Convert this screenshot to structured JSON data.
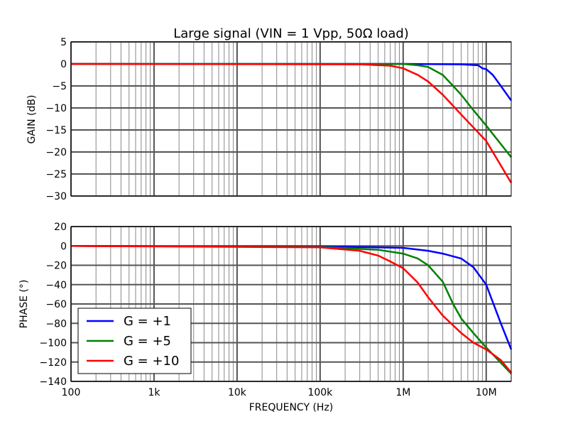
{
  "chart_data": [
    {
      "type": "line",
      "title": "Large signal (VIN = 1 Vpp, 50Ω load)",
      "xlabel": "",
      "ylabel": "GAIN (dB)",
      "xscale": "log",
      "xlim": [
        100,
        20000000
      ],
      "ylim": [
        -30,
        5
      ],
      "yticks": [
        5,
        0,
        -5,
        -10,
        -15,
        -20,
        -25,
        -30
      ],
      "grid": true,
      "series": [
        {
          "name": "G = +1",
          "color": "#0000ff",
          "x": [
            100,
            1000000,
            5000000,
            8000000,
            9000000,
            10000000,
            12000000,
            15000000,
            20000000
          ],
          "y": [
            0,
            0,
            -0.1,
            -0.3,
            -1,
            -1.2,
            -2.5,
            -5,
            -8.3
          ]
        },
        {
          "name": "G = +5",
          "color": "#008000",
          "x": [
            100,
            1000000,
            1500000,
            2000000,
            3000000,
            4000000,
            5000000,
            7000000,
            10000000,
            20000000
          ],
          "y": [
            0,
            0,
            -0.3,
            -0.7,
            -2.5,
            -5,
            -7,
            -10.5,
            -14,
            -21.2
          ]
        },
        {
          "name": "G = +10",
          "color": "#ff0000",
          "x": [
            100,
            300000,
            700000,
            1000000,
            1500000,
            2000000,
            3000000,
            5000000,
            10000000,
            20000000
          ],
          "y": [
            0,
            -0.1,
            -0.4,
            -1,
            -2.5,
            -4,
            -7,
            -11.5,
            -17.5,
            -27
          ]
        }
      ]
    },
    {
      "type": "line",
      "xlabel": "FREQUENCY (Hz)",
      "ylabel": "PHASE (°)",
      "xscale": "log",
      "xlim": [
        100,
        20000000
      ],
      "xticks": [
        "100",
        "1k",
        "10k",
        "100k",
        "1M",
        "10M"
      ],
      "ylim": [
        -140,
        20
      ],
      "yticks": [
        20,
        0,
        -20,
        -40,
        -60,
        -80,
        -100,
        -120,
        -140
      ],
      "grid": true,
      "legend": "lower-left",
      "series": [
        {
          "name": "G = +1",
          "color": "#0000ff",
          "x": [
            100,
            100000,
            1000000,
            2000000,
            3000000,
            5000000,
            7000000,
            10000000,
            15000000,
            20000000
          ],
          "y": [
            0,
            -0.5,
            -2,
            -5,
            -8,
            -13,
            -22,
            -40,
            -80,
            -107
          ]
        },
        {
          "name": "G = +5",
          "color": "#008000",
          "x": [
            100,
            100000,
            500000,
            1000000,
            1500000,
            2000000,
            3000000,
            4000000,
            5000000,
            7000000,
            10000000,
            20000000
          ],
          "y": [
            0,
            -1,
            -4,
            -8,
            -13,
            -20,
            -37,
            -60,
            -75,
            -90,
            -105,
            -132
          ]
        },
        {
          "name": "G = +10",
          "color": "#ff0000",
          "x": [
            100,
            100000,
            300000,
            500000,
            700000,
            1000000,
            1500000,
            2000000,
            3000000,
            5000000,
            7000000,
            10000000,
            15000000,
            20000000
          ],
          "y": [
            0,
            -1.5,
            -5,
            -10,
            -16,
            -23,
            -38,
            -53,
            -72,
            -90,
            -100,
            -107,
            -118,
            -131
          ]
        }
      ]
    }
  ]
}
